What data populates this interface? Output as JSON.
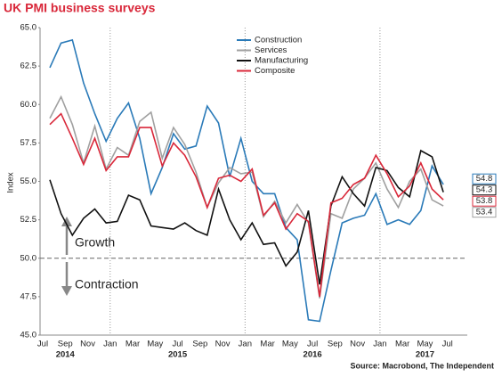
{
  "chart_data": {
    "type": "line",
    "title": "UK PMI business surveys",
    "y_label": "Index",
    "source": "Source: Macrobond, The Independent",
    "annotations": [
      "Growth",
      "Contraction"
    ],
    "categories": [
      "Jul",
      null,
      "Sep",
      null,
      "Nov",
      null,
      "Jan",
      null,
      "Mar",
      null,
      "May",
      null,
      "Jul",
      null,
      "Sep",
      null,
      "Nov",
      null,
      "Jan",
      null,
      "Mar",
      null,
      "May",
      null,
      "Jul",
      null,
      "Sep",
      null,
      "Nov",
      null,
      "Jan",
      null,
      "Mar",
      null,
      "May",
      null,
      "Jul"
    ],
    "years": [
      "2014",
      "2015",
      "2016",
      "2017"
    ],
    "ylim": [
      45,
      65
    ],
    "yticks": [
      {
        "value": 45,
        "label": "45.0"
      },
      47.5,
      {
        "value": 50,
        "label": "50.0"
      },
      52.5,
      {
        "value": 55,
        "label": "55.0"
      },
      57.5,
      {
        "value": 60,
        "label": "60.0"
      },
      62.5,
      {
        "value": 65,
        "label": "65.0"
      }
    ],
    "reference_line": 50,
    "series": [
      {
        "name": "Construction",
        "color": "#2a7ab8",
        "values": [
          62.4,
          64.0,
          64.2,
          61.4,
          59.4,
          57.6,
          59.1,
          60.1,
          57.8,
          54.2,
          55.9,
          58.1,
          57.1,
          57.3,
          59.9,
          58.8,
          55.3,
          57.8,
          55.0,
          54.2,
          54.2,
          52.0,
          51.2,
          46.0,
          45.9,
          49.2,
          52.3,
          52.6,
          52.8,
          54.2,
          52.2,
          52.5,
          52.2,
          53.1,
          56.0,
          54.8,
          null
        ]
      },
      {
        "name": "Services",
        "color": "#a0a0a0",
        "values": [
          59.1,
          60.5,
          58.7,
          56.2,
          58.6,
          55.8,
          57.2,
          56.7,
          58.9,
          59.5,
          56.5,
          58.5,
          57.4,
          55.6,
          53.3,
          54.9,
          55.9,
          55.5,
          55.6,
          52.7,
          53.7,
          52.3,
          53.5,
          52.3,
          47.4,
          52.9,
          52.6,
          54.5,
          55.2,
          56.2,
          54.5,
          53.3,
          55.0,
          55.8,
          53.8,
          53.4,
          null
        ]
      },
      {
        "name": "Manufacturing",
        "color": "#111111",
        "values": [
          55.1,
          52.9,
          51.5,
          52.6,
          53.2,
          52.3,
          52.4,
          54.1,
          53.8,
          52.1,
          52.0,
          51.9,
          52.3,
          51.8,
          51.5,
          54.5,
          52.5,
          51.2,
          52.3,
          50.9,
          51.0,
          49.5,
          50.4,
          53.1,
          48.3,
          53.4,
          55.3,
          54.2,
          53.4,
          55.9,
          55.7,
          54.6,
          54.0,
          57.0,
          56.6,
          54.3,
          null
        ]
      },
      {
        "name": "Composite",
        "color": "#d9283a",
        "values": [
          58.7,
          59.4,
          57.8,
          56.1,
          57.8,
          55.7,
          56.6,
          56.6,
          58.5,
          58.5,
          56.0,
          57.5,
          56.7,
          55.3,
          53.3,
          55.2,
          55.4,
          55.0,
          55.8,
          52.8,
          53.6,
          51.9,
          52.9,
          52.4,
          47.5,
          53.6,
          53.9,
          54.8,
          55.2,
          56.7,
          55.5,
          54.0,
          54.7,
          56.2,
          54.5,
          53.8,
          null
        ]
      }
    ]
  }
}
